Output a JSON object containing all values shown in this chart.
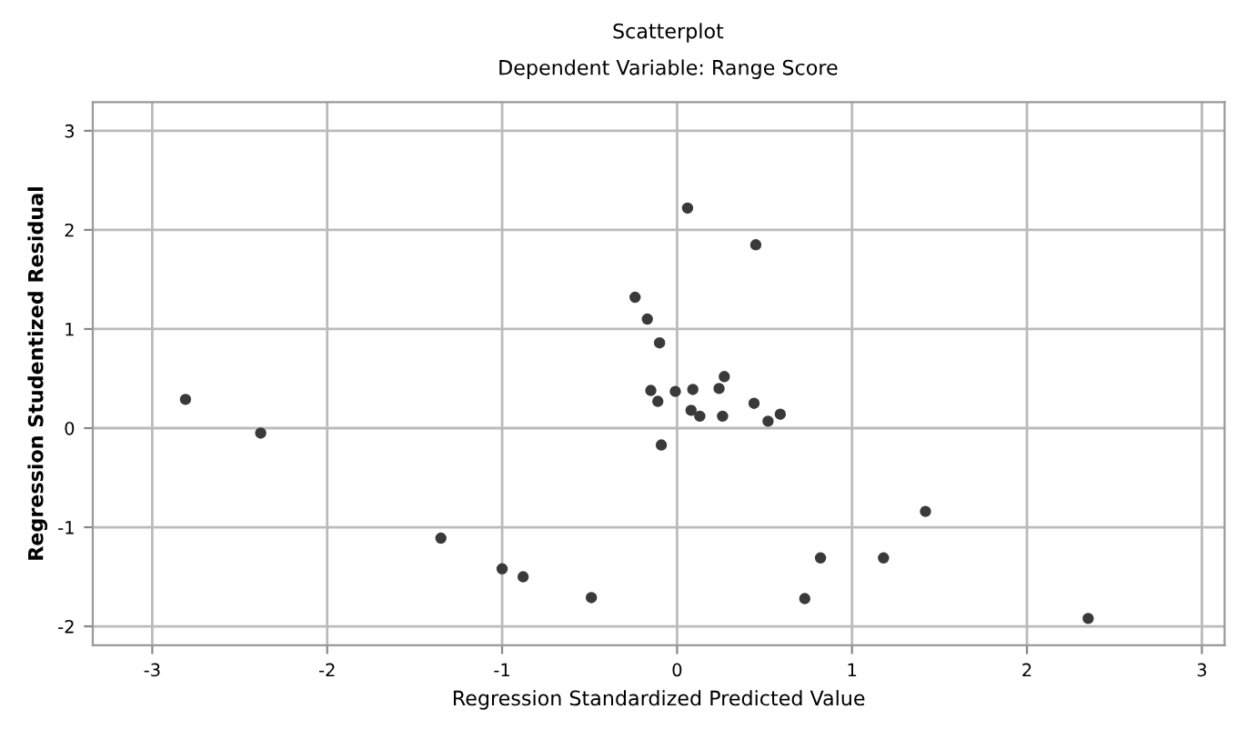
{
  "chart_data": {
    "type": "scatter",
    "title": "Scatterplot",
    "subtitle": "Dependent Variable: Range Score",
    "xlabel": "Regression Standardized Predicted Value",
    "ylabel": "Regression Studentized Residual",
    "xlim": [
      -3.34,
      3.13
    ],
    "ylim": [
      -2.19,
      3.29
    ],
    "xticks": [
      -3,
      -2,
      -1,
      0,
      1,
      2,
      3
    ],
    "yticks": [
      -2,
      -1,
      0,
      1,
      2,
      3
    ],
    "grid": true,
    "marker": "circle",
    "series": [
      {
        "color": "#3a3a3a",
        "x": [
          0.06,
          0.45,
          -0.24,
          -0.17,
          -0.1,
          -2.81,
          -2.38,
          -0.15,
          -0.11,
          -0.01,
          0.09,
          0.24,
          0.27,
          0.08,
          0.13,
          0.26,
          0.44,
          0.52,
          0.59,
          -0.09,
          1.42,
          -1.35,
          -1.0,
          -0.88,
          -0.49,
          0.82,
          1.18,
          0.73,
          2.35
        ],
        "values": [
          2.22,
          1.85,
          1.32,
          1.1,
          0.86,
          0.29,
          -0.05,
          0.38,
          0.27,
          0.37,
          0.39,
          0.4,
          0.52,
          0.18,
          0.12,
          0.12,
          0.25,
          0.07,
          0.14,
          -0.17,
          -0.84,
          -1.11,
          -1.42,
          -1.5,
          -1.71,
          -1.31,
          -1.31,
          -1.72,
          -1.92
        ]
      }
    ]
  }
}
